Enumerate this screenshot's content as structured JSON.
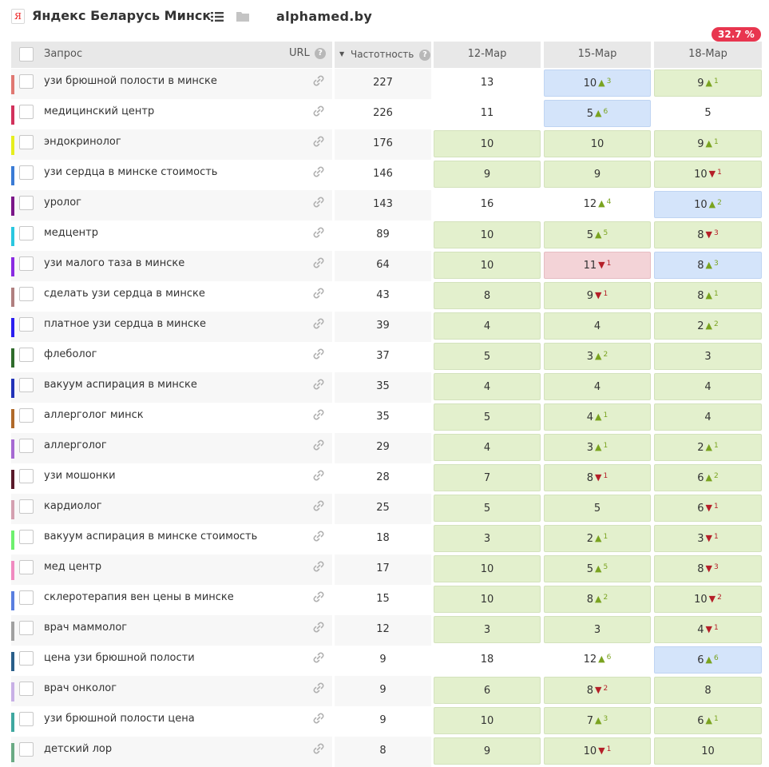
{
  "header": {
    "search_engine": "Яндекс Беларусь Минск",
    "logo_letter": "Я",
    "domain": "alphamed.by",
    "percent_badge": "32.7 %",
    "icons": {
      "list": "list-icon",
      "folder": "folder-icon",
      "link": "link-icon",
      "help": "help-icon"
    }
  },
  "table": {
    "columns": {
      "query": "Запрос",
      "url": "URL",
      "frequency": "Частотность",
      "dates": [
        "12-Мар",
        "15-Мар",
        "18-Мар"
      ]
    },
    "sort_indicator": "▼",
    "help_glyph": "?",
    "rows": [
      {
        "color": "#e07872",
        "query": "узи брюшной полости в минске",
        "freq": "227",
        "c": [
          {
            "v": "13",
            "s": ""
          },
          {
            "v": "10",
            "d": "up",
            "n": "3",
            "s": "b"
          },
          {
            "v": "9",
            "d": "up",
            "n": "1",
            "s": "g"
          }
        ]
      },
      {
        "color": "#d2325c",
        "query": "медицинский центр",
        "freq": "226",
        "c": [
          {
            "v": "11",
            "s": ""
          },
          {
            "v": "5",
            "d": "up",
            "n": "6",
            "s": "b"
          },
          {
            "v": "5",
            "s": ""
          }
        ]
      },
      {
        "color": "#e6ee1e",
        "query": "эндокринолог",
        "freq": "176",
        "c": [
          {
            "v": "10",
            "s": "g"
          },
          {
            "v": "10",
            "s": "g"
          },
          {
            "v": "9",
            "d": "up",
            "n": "1",
            "s": "g"
          }
        ]
      },
      {
        "color": "#3a7bd5",
        "query": "узи сердца в минске стоимость",
        "freq": "146",
        "c": [
          {
            "v": "9",
            "s": "g"
          },
          {
            "v": "9",
            "s": "g"
          },
          {
            "v": "10",
            "d": "dn",
            "n": "1",
            "s": "g"
          }
        ]
      },
      {
        "color": "#7b1688",
        "query": "уролог",
        "freq": "143",
        "c": [
          {
            "v": "16",
            "s": ""
          },
          {
            "v": "12",
            "d": "up",
            "n": "4",
            "s": ""
          },
          {
            "v": "10",
            "d": "up",
            "n": "2",
            "s": "b"
          }
        ]
      },
      {
        "color": "#2ac7e0",
        "query": "медцентр",
        "freq": "89",
        "c": [
          {
            "v": "10",
            "s": "g"
          },
          {
            "v": "5",
            "d": "up",
            "n": "5",
            "s": "g"
          },
          {
            "v": "8",
            "d": "dn",
            "n": "3",
            "s": "g"
          }
        ]
      },
      {
        "color": "#8a2be2",
        "query": "узи малого таза в минске",
        "freq": "64",
        "c": [
          {
            "v": "10",
            "s": "g"
          },
          {
            "v": "11",
            "d": "dn",
            "n": "1",
            "s": "r"
          },
          {
            "v": "8",
            "d": "up",
            "n": "3",
            "s": "b"
          }
        ]
      },
      {
        "color": "#b07f7f",
        "query": "сделать узи сердца в минске",
        "freq": "43",
        "c": [
          {
            "v": "8",
            "s": "g"
          },
          {
            "v": "9",
            "d": "dn",
            "n": "1",
            "s": "g"
          },
          {
            "v": "8",
            "d": "up",
            "n": "1",
            "s": "g"
          }
        ]
      },
      {
        "color": "#2b1ef0",
        "query": "платное узи сердца в минске",
        "freq": "39",
        "c": [
          {
            "v": "4",
            "s": "g"
          },
          {
            "v": "4",
            "s": "g"
          },
          {
            "v": "2",
            "d": "up",
            "n": "2",
            "s": "g"
          }
        ]
      },
      {
        "color": "#2f6b2b",
        "query": "флеболог",
        "freq": "37",
        "c": [
          {
            "v": "5",
            "s": "g"
          },
          {
            "v": "3",
            "d": "up",
            "n": "2",
            "s": "g"
          },
          {
            "v": "3",
            "s": "g"
          }
        ]
      },
      {
        "color": "#2233b8",
        "query": "вакуум аспирация в минске",
        "freq": "35",
        "c": [
          {
            "v": "4",
            "s": "g"
          },
          {
            "v": "4",
            "s": "g"
          },
          {
            "v": "4",
            "s": "g"
          }
        ]
      },
      {
        "color": "#b06a2a",
        "query": "аллерголог минск",
        "freq": "35",
        "c": [
          {
            "v": "5",
            "s": "g"
          },
          {
            "v": "4",
            "d": "up",
            "n": "1",
            "s": "g"
          },
          {
            "v": "4",
            "s": "g"
          }
        ]
      },
      {
        "color": "#a66ad2",
        "query": "аллерголог",
        "freq": "29",
        "c": [
          {
            "v": "4",
            "s": "g"
          },
          {
            "v": "3",
            "d": "up",
            "n": "1",
            "s": "g"
          },
          {
            "v": "2",
            "d": "up",
            "n": "1",
            "s": "g"
          }
        ]
      },
      {
        "color": "#5a1a2a",
        "query": "узи мошонки",
        "freq": "28",
        "c": [
          {
            "v": "7",
            "s": "g"
          },
          {
            "v": "8",
            "d": "dn",
            "n": "1",
            "s": "g"
          },
          {
            "v": "6",
            "d": "up",
            "n": "2",
            "s": "g"
          }
        ]
      },
      {
        "color": "#d4a0b0",
        "query": "кардиолог",
        "freq": "25",
        "c": [
          {
            "v": "5",
            "s": "g"
          },
          {
            "v": "5",
            "s": "g"
          },
          {
            "v": "6",
            "d": "dn",
            "n": "1",
            "s": "g"
          }
        ]
      },
      {
        "color": "#6ef06e",
        "query": "вакуум аспирация в минске стоимость",
        "freq": "18",
        "c": [
          {
            "v": "3",
            "s": "g"
          },
          {
            "v": "2",
            "d": "up",
            "n": "1",
            "s": "g"
          },
          {
            "v": "3",
            "d": "dn",
            "n": "1",
            "s": "g"
          }
        ]
      },
      {
        "color": "#f08ac0",
        "query": "мед центр",
        "freq": "17",
        "c": [
          {
            "v": "10",
            "s": "g"
          },
          {
            "v": "5",
            "d": "up",
            "n": "5",
            "s": "g"
          },
          {
            "v": "8",
            "d": "dn",
            "n": "3",
            "s": "g"
          }
        ]
      },
      {
        "color": "#5a7fe0",
        "query": "склеротерапия вен цены в минске",
        "freq": "15",
        "c": [
          {
            "v": "10",
            "s": "g"
          },
          {
            "v": "8",
            "d": "up",
            "n": "2",
            "s": "g"
          },
          {
            "v": "10",
            "d": "dn",
            "n": "2",
            "s": "g"
          }
        ]
      },
      {
        "color": "#a0a0a0",
        "query": "врач маммолог",
        "freq": "12",
        "c": [
          {
            "v": "3",
            "s": "g"
          },
          {
            "v": "3",
            "s": "g"
          },
          {
            "v": "4",
            "d": "dn",
            "n": "1",
            "s": "g"
          }
        ]
      },
      {
        "color": "#2a5f8a",
        "query": "цена узи брюшной полости",
        "freq": "9",
        "c": [
          {
            "v": "18",
            "s": ""
          },
          {
            "v": "12",
            "d": "up",
            "n": "6",
            "s": ""
          },
          {
            "v": "6",
            "d": "up",
            "n": "6",
            "s": "b"
          }
        ]
      },
      {
        "color": "#c8b0e6",
        "query": "врач онколог",
        "freq": "9",
        "c": [
          {
            "v": "6",
            "s": "g"
          },
          {
            "v": "8",
            "d": "dn",
            "n": "2",
            "s": "g"
          },
          {
            "v": "8",
            "s": "g"
          }
        ]
      },
      {
        "color": "#3fa8a0",
        "query": "узи брюшной полости цена",
        "freq": "9",
        "c": [
          {
            "v": "10",
            "s": "g"
          },
          {
            "v": "7",
            "d": "up",
            "n": "3",
            "s": "g"
          },
          {
            "v": "6",
            "d": "up",
            "n": "1",
            "s": "g"
          }
        ]
      },
      {
        "color": "#6aaa84",
        "query": "детский лор",
        "freq": "8",
        "c": [
          {
            "v": "9",
            "s": "g"
          },
          {
            "v": "10",
            "d": "dn",
            "n": "1",
            "s": "g"
          },
          {
            "v": "10",
            "s": "g"
          }
        ]
      }
    ]
  }
}
